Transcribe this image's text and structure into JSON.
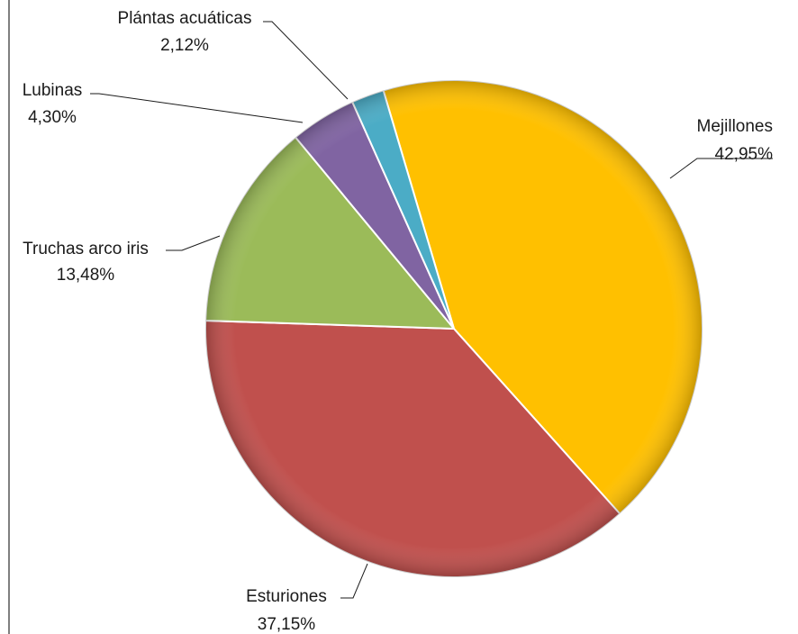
{
  "chart_data": {
    "type": "pie",
    "categories": [
      "Mejillones",
      "Esturiones",
      "Truchas arco iris",
      "Lubinas",
      "Plántas acuáticas"
    ],
    "values": [
      42.95,
      37.15,
      13.48,
      4.3,
      2.12
    ],
    "value_labels": [
      "42,95%",
      "37,15%",
      "13,48%",
      "4,30%",
      "2,12%"
    ],
    "colors": [
      "#FFC000",
      "#C0504D",
      "#9BBB59",
      "#8064A2",
      "#4BACC6"
    ],
    "title": "",
    "legend": "none"
  }
}
